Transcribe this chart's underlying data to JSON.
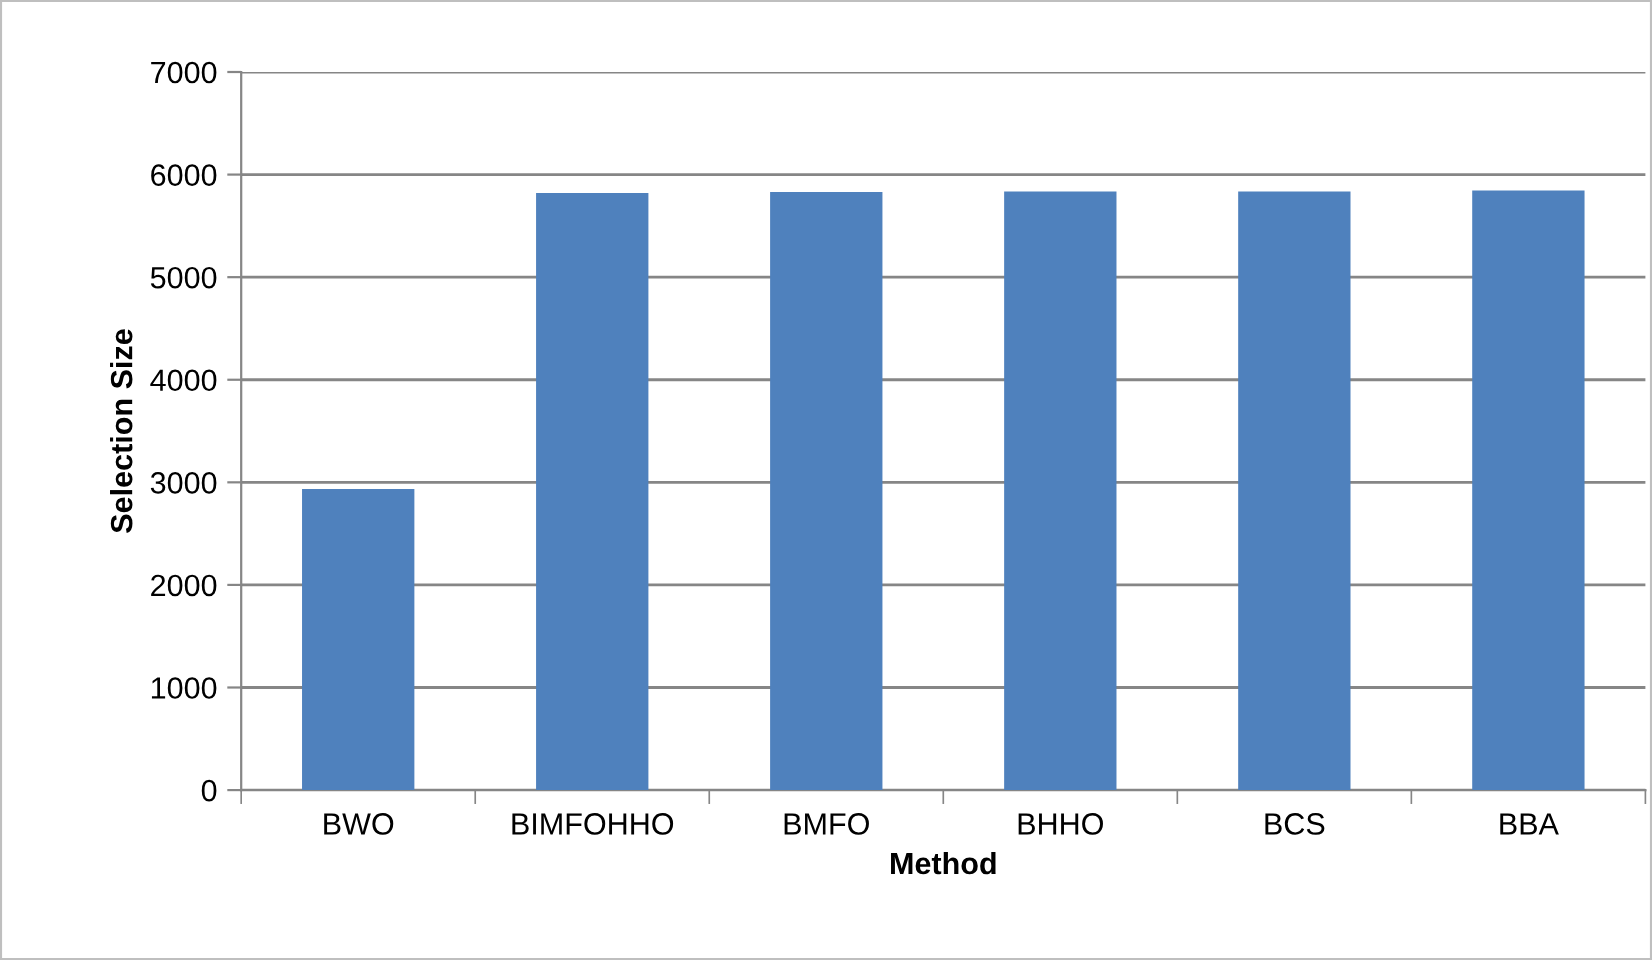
{
  "chart_data": {
    "type": "bar",
    "xlabel": "Method",
    "ylabel": "Selection Size",
    "categories": [
      "BWO",
      "BIMFOHHO",
      "BMFO",
      "BHHO",
      "BCS",
      "BBA"
    ],
    "values": [
      2936,
      5821,
      5830,
      5835,
      5836,
      5846
    ],
    "color": "#4f81bd",
    "ylim": [
      0,
      7000
    ],
    "yticks": [
      0,
      1000,
      2000,
      3000,
      4000,
      5000,
      6000,
      7000
    ],
    "grid": "y"
  }
}
